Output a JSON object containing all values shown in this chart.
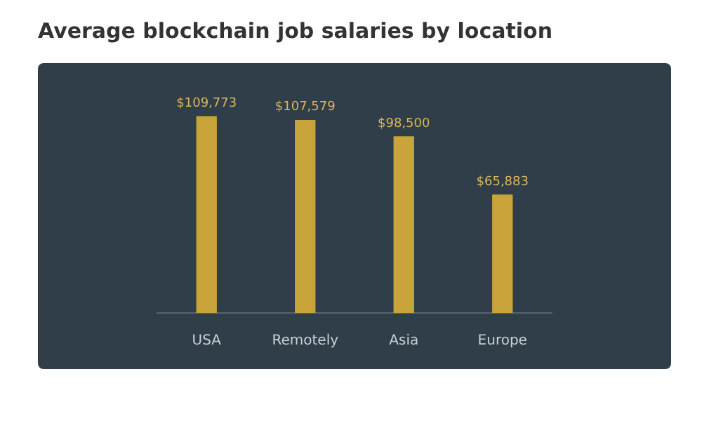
{
  "chart_data": {
    "type": "bar",
    "title": "Average blockchain job salaries by location",
    "categories": [
      "USA",
      "Remotely",
      "Asia",
      "Europe"
    ],
    "values": [
      109773,
      107579,
      98500,
      65883
    ],
    "value_labels": [
      "$109,773",
      "$107,579",
      "$98,500",
      "$65,883"
    ],
    "color": "#c9a43a",
    "grid": false,
    "legend": false,
    "tick_labels": "x"
  }
}
